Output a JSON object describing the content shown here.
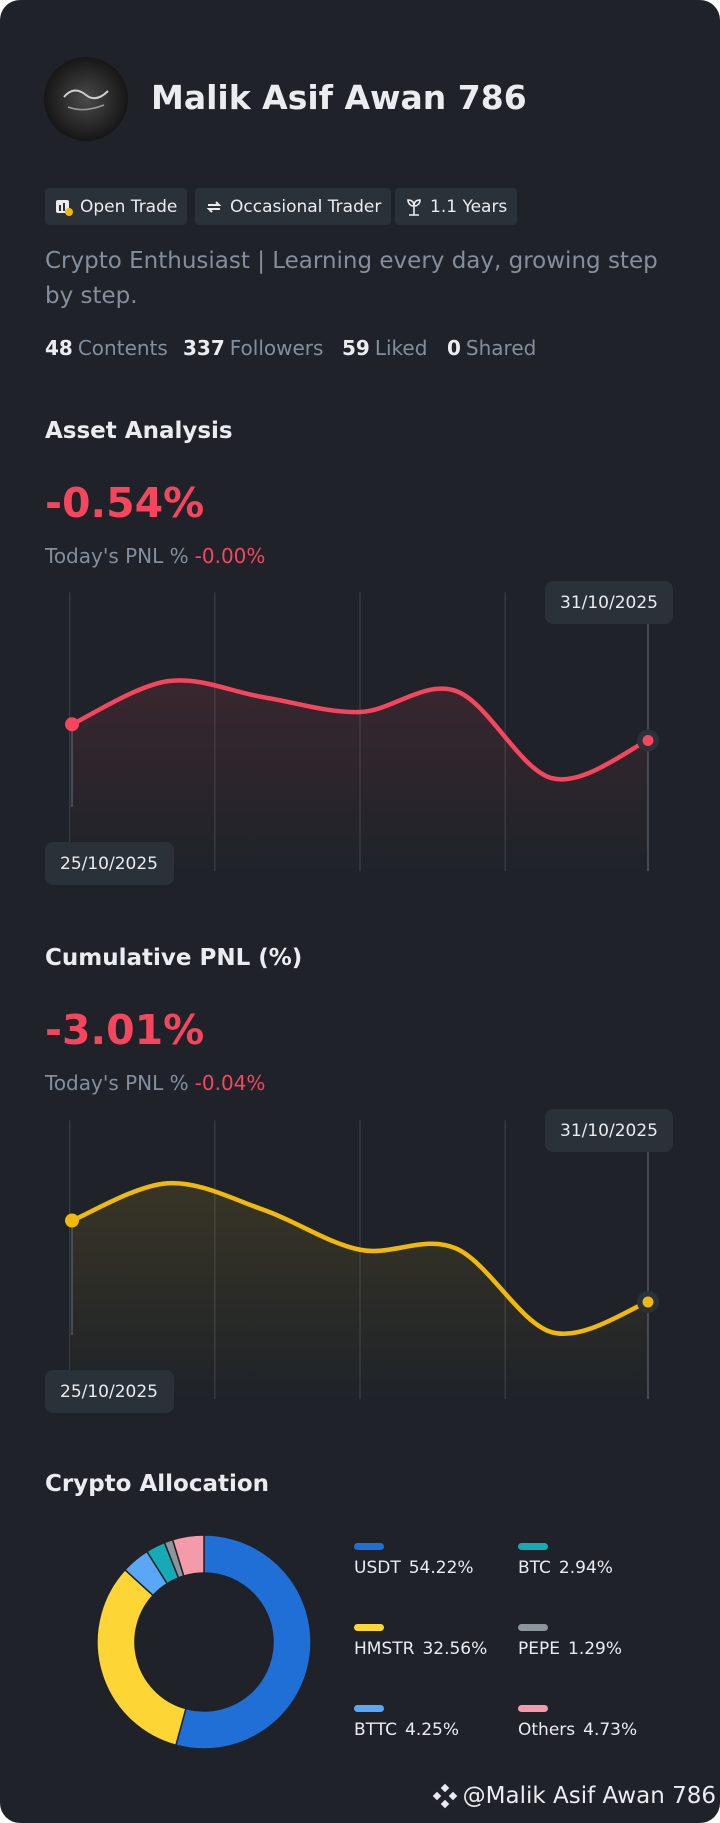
{
  "profile": {
    "name": "Malik Asif Awan 786",
    "badges": [
      "Open Trade",
      "Occasional Trader",
      "1.1 Years"
    ],
    "bio": "Crypto Enthusiast | Learning every day, growing step by step.",
    "stats": [
      {
        "value": 48,
        "label": "Contents"
      },
      {
        "value": 337,
        "label": "Followers"
      },
      {
        "value": 59,
        "label": "Liked"
      },
      {
        "value": 0,
        "label": "Shared"
      }
    ]
  },
  "chart_data": [
    {
      "type": "line",
      "title": "Asset Analysis",
      "headline": {
        "value": -0.54,
        "label": "-0.54%"
      },
      "today_label": "Today's PNL %",
      "today": {
        "value": 0,
        "label": "-0.00%"
      },
      "categories": [
        "25/10/2025",
        null,
        null,
        null,
        null,
        null,
        "31/10/2025"
      ],
      "values": [
        0,
        1.44,
        0.9,
        0.41,
        1.11,
        -1.8,
        -0.54
      ],
      "color": "#f6465d",
      "ylim": [
        -4.9,
        4.4
      ]
    },
    {
      "type": "line",
      "title": "Cumulative PNL (%)",
      "headline": {
        "value": -3.01,
        "label": "-3.01%"
      },
      "today_label": "Today's PNL %",
      "today": {
        "value": -0.04,
        "label": "-0.04%"
      },
      "categories": [
        "25/10/2025",
        null,
        null,
        null,
        null,
        null,
        "31/10/2025"
      ],
      "values": [
        0,
        1.38,
        0.39,
        -1.08,
        -1.03,
        -4.13,
        -3.01
      ],
      "color": "#f0b90b",
      "ylim": [
        -6.6,
        3.7
      ]
    },
    {
      "type": "pie",
      "title": "Crypto Allocation",
      "categories": [
        "USDT",
        "HMSTR",
        "BTTC",
        "BTC",
        "PEPE",
        "Others"
      ],
      "values": [
        54.22,
        32.56,
        4.25,
        2.94,
        1.29,
        4.73
      ],
      "value_labels": [
        "54.22%",
        "32.56%",
        "4.25%",
        "2.94%",
        "1.29%",
        "4.73%"
      ],
      "colors": [
        "#1f6fd6",
        "#fdd535",
        "#5aa7f5",
        "#16aab4",
        "#8e949c",
        "#f59aa8"
      ]
    }
  ],
  "watermark": "@Malik Asif Awan 786"
}
